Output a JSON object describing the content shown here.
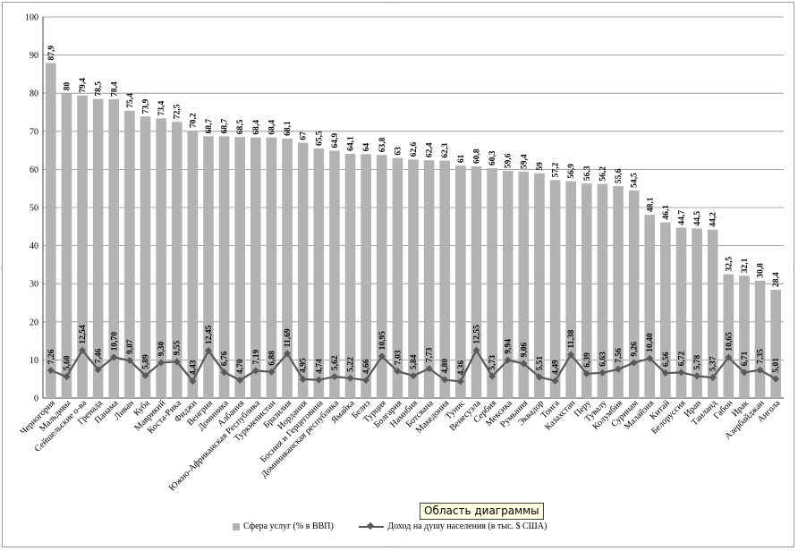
{
  "chart_data": {
    "type": "bar",
    "categories": [
      "Черногория",
      "Мальдивы",
      "Сейшельские о-ва",
      "Гренада",
      "Панама",
      "Ливан",
      "Куба",
      "Маврикий",
      "Коста-Рика",
      "Фиджи",
      "Венгрия",
      "Доминика",
      "Албания",
      "Южно-Африканская Республика",
      "Туркменистан",
      "Бразилия",
      "Иордания",
      "Босния и Герцеговина",
      "Доминиканская республика",
      "Ямайка",
      "Белиз",
      "Турция",
      "Болгария",
      "Намибия",
      "Ботсвана",
      "Македония",
      "Тунис",
      "Венесуэла",
      "Сербия",
      "Мексика",
      "Румыния",
      "Эквадор",
      "Тонга",
      "Казахстан",
      "Перу",
      "Тувалу",
      "Колумбия",
      "Суринам",
      "Малайзия",
      "Китай",
      "Белоруссия",
      "Иран",
      "Таиланд",
      "Габон",
      "Ирак",
      "Азербайджан",
      "Ангола"
    ],
    "series": [
      {
        "name": "Сфера услуг (% в ВВП)",
        "type": "bar",
        "values": [
          87.9,
          80,
          79.4,
          78.5,
          78.4,
          75.4,
          73.9,
          73.4,
          72.5,
          70.2,
          68.7,
          68.7,
          68.5,
          68.4,
          68.4,
          68.1,
          67,
          65.5,
          64.9,
          64.1,
          64,
          63.8,
          63,
          62.6,
          62.4,
          62.3,
          61,
          60.8,
          60.3,
          59.6,
          59.4,
          59,
          57.2,
          56.9,
          56.3,
          56.2,
          55.6,
          54.5,
          48.1,
          46.1,
          44.7,
          44.5,
          44.2,
          32.5,
          32.1,
          30.8,
          28.4
        ],
        "labels": [
          "87,9",
          "80",
          "79,4",
          "78,5",
          "78,4",
          "75,4",
          "73,9",
          "73,4",
          "72,5",
          "70,2",
          "68,7",
          "68,7",
          "68,5",
          "68,4",
          "68,4",
          "68,1",
          "67",
          "65,5",
          "64,9",
          "64,1",
          "64",
          "63,8",
          "63",
          "62,6",
          "62,4",
          "62,3",
          "61",
          "60,8",
          "60,3",
          "59,6",
          "59,4",
          "59",
          "57,2",
          "56,9",
          "56,3",
          "56,2",
          "55,6",
          "54,5",
          "48,1",
          "46,1",
          "44,7",
          "44,5",
          "44,2",
          "32,5",
          "32,1",
          "30,8",
          "28,4"
        ]
      },
      {
        "name": "Доход на душу населения (в тыс. $ США)",
        "type": "line",
        "values": [
          7.26,
          5.6,
          12.54,
          7.46,
          10.7,
          9.87,
          5.89,
          9.3,
          9.55,
          4.43,
          12.45,
          6.76,
          4.7,
          7.19,
          6.88,
          11.69,
          4.95,
          4.74,
          5.62,
          5.22,
          4.66,
          10.95,
          7.03,
          5.84,
          7.73,
          4.8,
          4.36,
          12.55,
          5.73,
          9.94,
          9.06,
          5.51,
          4.49,
          11.38,
          6.39,
          6.63,
          7.56,
          9.26,
          10.4,
          6.56,
          6.72,
          5.78,
          5.37,
          10.65,
          6.71,
          7.35,
          5.01
        ],
        "labels": [
          "7,26",
          "5,60",
          "12,54",
          "7,46",
          "10,70",
          "9,87",
          "5,89",
          "9,30",
          "9,55",
          "4,43",
          "12,45",
          "6,76",
          "4,70",
          "7,19",
          "6,88",
          "11,69",
          "4,95",
          "4,74",
          "5,62",
          "5,22",
          "4,66",
          "10,95",
          "7,03",
          "5,84",
          "7,73",
          "4,80",
          "4,36",
          "12,55",
          "5,73",
          "9,94",
          "9,06",
          "5,51",
          "4,49",
          "11,38",
          "6,39",
          "6,63",
          "7,56",
          "9,26",
          "10,40",
          "6,56",
          "6,72",
          "5,78",
          "5,37",
          "10,65",
          "6,71",
          "7,35",
          "5,01"
        ]
      }
    ],
    "ylim": [
      0,
      100
    ],
    "yticks": [
      0,
      10,
      20,
      30,
      40,
      50,
      60,
      70,
      80,
      90,
      100
    ],
    "grid": true,
    "legend_position": "bottom",
    "colors": {
      "bar": "#b3b3b3",
      "line": "#595959",
      "grid": "#8c8c8c",
      "axis": "#404040"
    }
  },
  "tooltip": {
    "text": "Область диаграммы"
  },
  "legend": {
    "bar_label": "Сфера услуг (% в ВВП)",
    "line_label": "Доход на душу населения (в тыс. $ США)"
  }
}
